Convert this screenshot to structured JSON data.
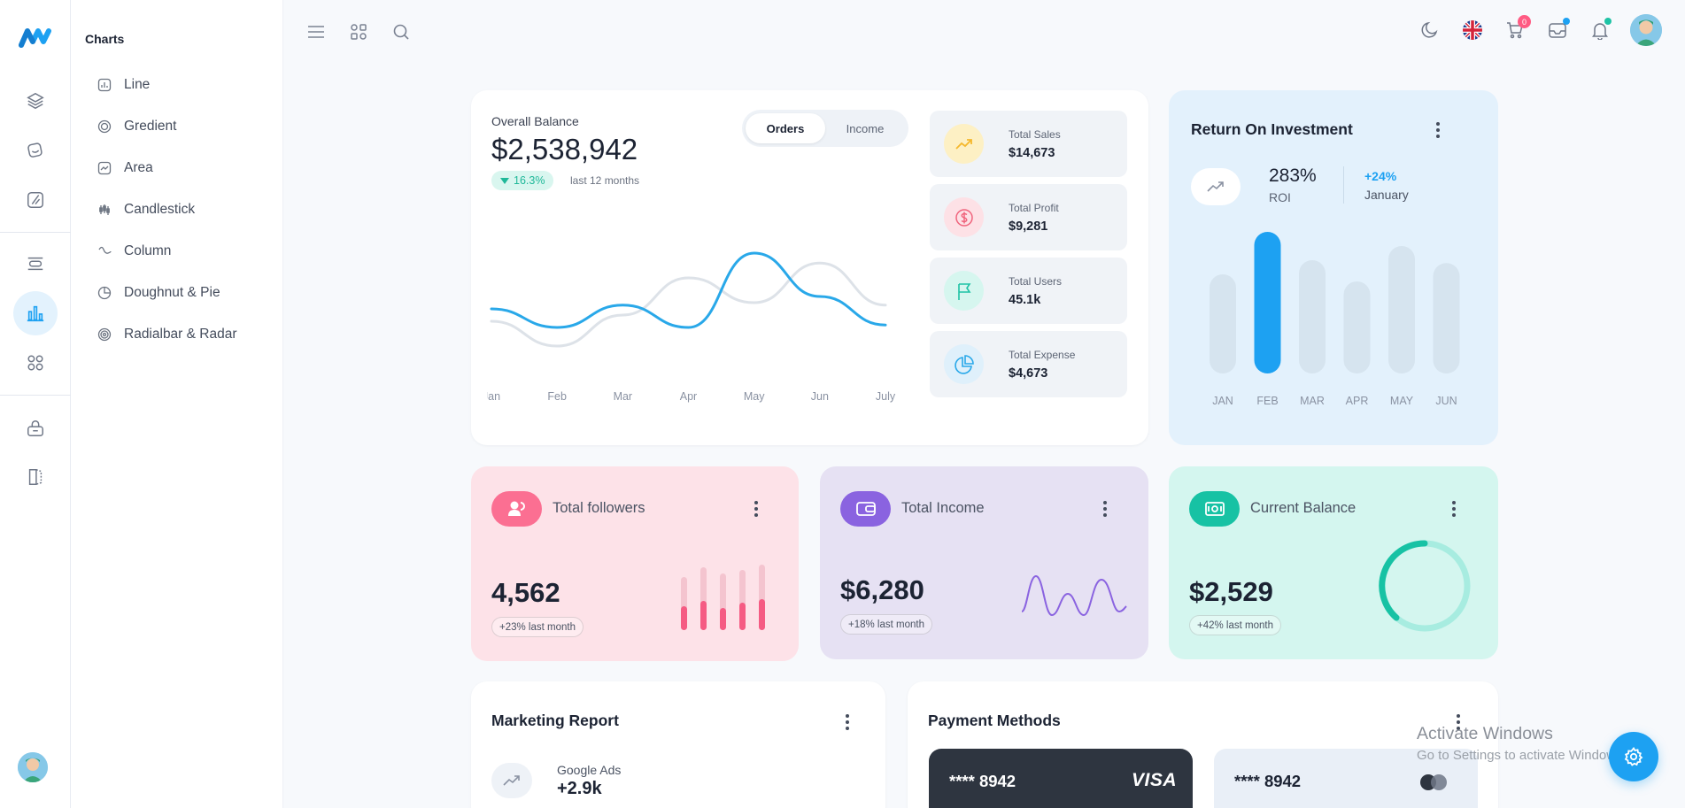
{
  "sidebar": {
    "section_title": "Charts",
    "items": [
      {
        "label": "Line",
        "icon": "line-chart-icon"
      },
      {
        "label": "Gredient",
        "icon": "gradient-chart-icon"
      },
      {
        "label": "Area",
        "icon": "area-chart-icon"
      },
      {
        "label": "Candlestick",
        "icon": "candlestick-chart-icon"
      },
      {
        "label": "Column",
        "icon": "column-chart-icon"
      },
      {
        "label": "Doughnut & Pie",
        "icon": "doughnut-chart-icon"
      },
      {
        "label": "Radialbar & Radar",
        "icon": "radar-chart-icon"
      }
    ]
  },
  "header": {
    "cart_count": "0"
  },
  "overall_balance": {
    "label": "Overall Balance",
    "value": "$2,538,942",
    "change": "16.3%",
    "period": "last 12 months",
    "tabs": [
      "Orders",
      "Income"
    ],
    "active_tab": "Orders"
  },
  "stats": [
    {
      "label": "Total Sales",
      "value": "$14,673",
      "icon": "trend-up-icon",
      "bg": "#fdf0c4",
      "color": "#f5b82e"
    },
    {
      "label": "Total Profit",
      "value": "$9,281",
      "icon": "dollar-icon",
      "bg": "#fde1e6",
      "color": "#f0647d"
    },
    {
      "label": "Total Users",
      "value": "45.1k",
      "icon": "flag-icon",
      "bg": "#d6f6ef",
      "color": "#1fc3a5"
    },
    {
      "label": "Total Expense",
      "value": "$4,673",
      "icon": "pie-icon",
      "bg": "#dff0fb",
      "color": "#29a8e9"
    }
  ],
  "roi": {
    "title": "Return On Investment",
    "value": "283%",
    "label": "ROI",
    "change": "+24%",
    "month": "January"
  },
  "followers": {
    "title": "Total followers",
    "value": "4,562",
    "change": "+23% last month"
  },
  "income": {
    "title": "Total Income",
    "value": "$6,280",
    "change": "+18% last month"
  },
  "balance": {
    "title": "Current Balance",
    "value": "$2,529",
    "change": "+42% last month"
  },
  "marketing": {
    "title": "Marketing Report",
    "item_label": "Google Ads",
    "item_value": "+2.9k"
  },
  "payment": {
    "title": "Payment Methods",
    "cards": [
      {
        "number": "**** 8942",
        "brand": "VISA"
      },
      {
        "number": "**** 8942",
        "brand": ""
      }
    ]
  },
  "watermark": {
    "line1": "Activate Windows",
    "line2": "Go to Settings to activate Windows."
  },
  "chart_data": [
    {
      "type": "line",
      "categories": [
        "Jan",
        "Feb",
        "Mar",
        "Apr",
        "May",
        "Jun",
        "July"
      ],
      "series": [
        {
          "values": [
            45,
            30,
            48,
            30,
            90,
            55,
            32
          ],
          "color": "#29a8e9"
        },
        {
          "values": [
            35,
            15,
            40,
            70,
            50,
            82,
            48
          ],
          "color": "#dde2e8"
        }
      ],
      "ylim": [
        0,
        100
      ]
    },
    {
      "type": "bar",
      "categories": [
        "JAN",
        "FEB",
        "MAR",
        "APR",
        "MAY",
        "JUN"
      ],
      "values": [
        70,
        100,
        80,
        65,
        90,
        78
      ],
      "highlight": "FEB",
      "ylim": [
        0,
        100
      ]
    }
  ]
}
